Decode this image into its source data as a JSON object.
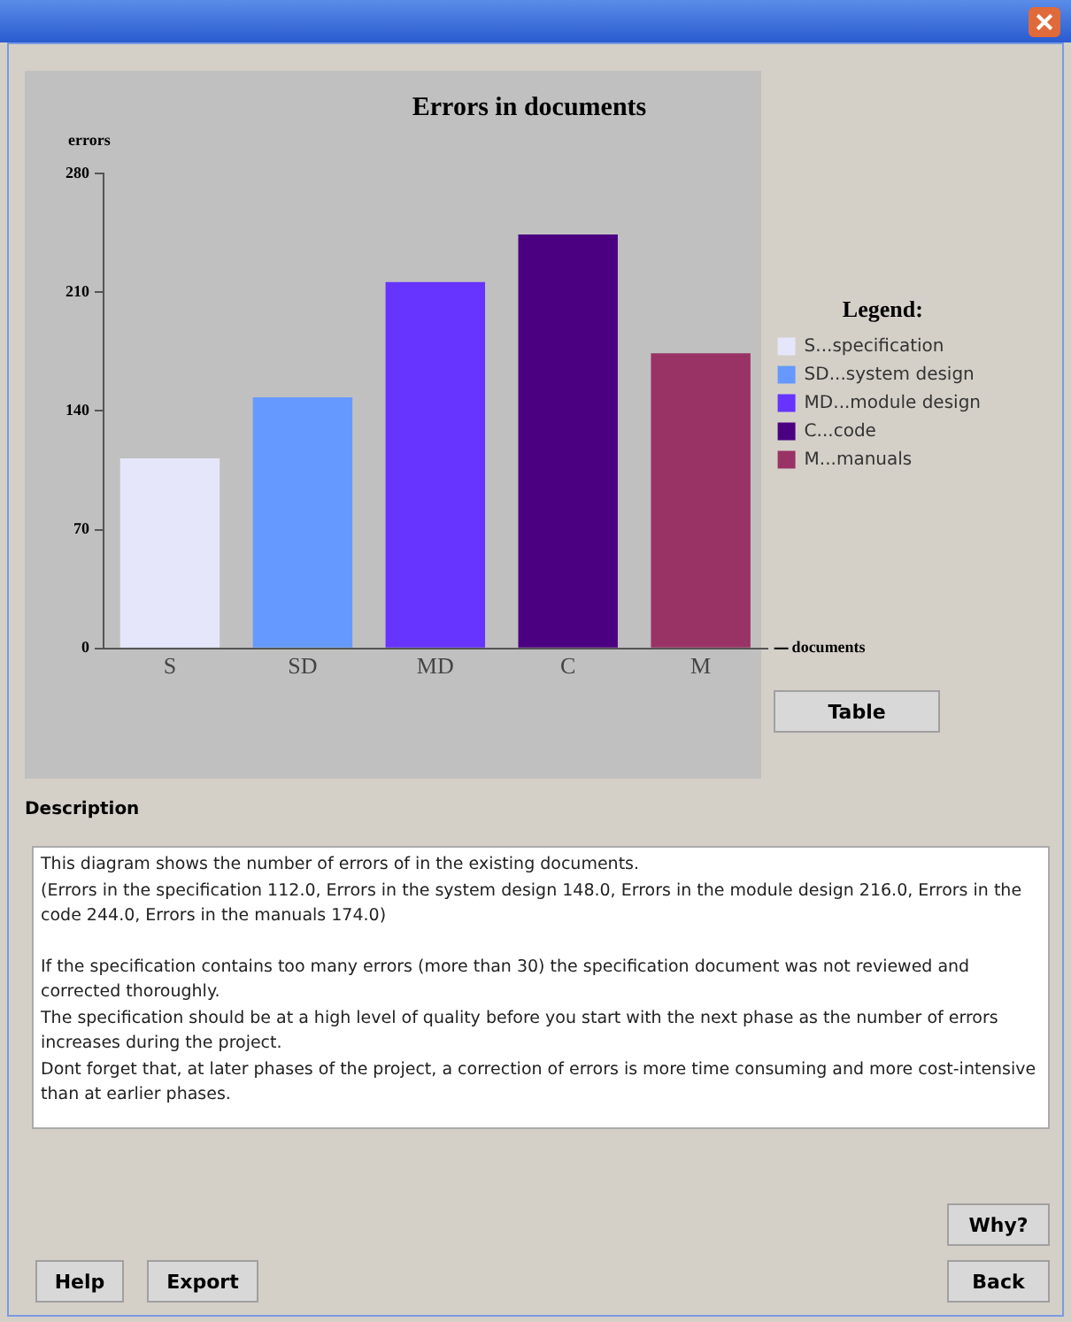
{
  "chart_data": {
    "type": "bar",
    "title": "Errors in documents",
    "ylabel": "errors",
    "xlabel": "documents",
    "legend_title": "Legend:",
    "categories": [
      "S",
      "SD",
      "MD",
      "C",
      "M"
    ],
    "series": [
      {
        "name": "S...specification",
        "color": "#e6e6fa",
        "values": [
          112,
          null,
          null,
          null,
          null
        ]
      },
      {
        "name": "SD...system design",
        "color": "#6699ff",
        "values": [
          null,
          148,
          null,
          null,
          null
        ]
      },
      {
        "name": "MD...module design",
        "color": "#6633ff",
        "values": [
          null,
          null,
          216,
          null,
          null
        ]
      },
      {
        "name": "C...code",
        "color": "#4b0082",
        "values": [
          null,
          null,
          null,
          244,
          null
        ]
      },
      {
        "name": "M...manuals",
        "color": "#993366",
        "values": [
          null,
          null,
          null,
          null,
          174
        ]
      }
    ],
    "stacked": true,
    "ylim": [
      0,
      280
    ],
    "yticks": [
      0,
      70,
      140,
      210,
      280
    ],
    "grid": false,
    "legend": "right",
    "annotations": [
      "Table",
      "Description",
      "This diagram shows the number of errors of in the existing documents.",
      "(Errors in the specification 112.0, Errors in the system design 148.0, Errors in the module design 216.0, Errors in the code 244.0, Errors in the manuals 174.0)",
      "If the specification contains too many errors (more than 30) the specification document was not reviewed and corrected thoroughly.",
      "The specification should be at a high level of quality before you start with the next phase as the number of errors increases during the project.",
      "Dont forget that, at later phases of the project, a correction of errors is more time consuming and more cost-intensive than at earlier phases.",
      "Why?",
      "Help",
      "Export",
      "Back"
    ]
  }
}
